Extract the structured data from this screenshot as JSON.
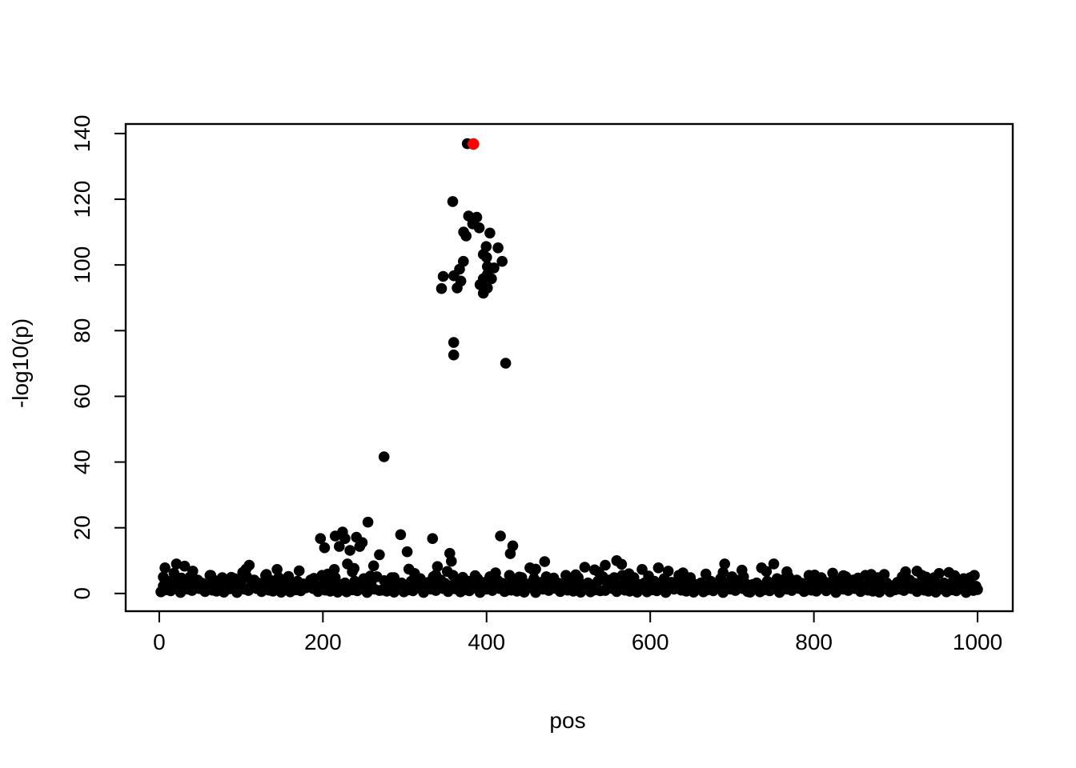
{
  "figure": {
    "background": "#FFFFFF"
  },
  "chart_data": {
    "type": "scatter",
    "title": "",
    "xlabel": "pos",
    "ylabel": "-log10(p)",
    "xlim": [
      -41,
      1043
    ],
    "ylim": [
      -5.4,
      142.9
    ],
    "x_ticks": [
      0,
      200,
      400,
      600,
      800,
      1000
    ],
    "y_ticks": [
      0,
      20,
      40,
      60,
      80,
      100,
      120,
      140
    ],
    "grid": false,
    "legend": false,
    "point_color": "#000000",
    "highlight_color": "#FF0000",
    "highlighted_point": {
      "x": 383.9,
      "y": 136.8
    },
    "series": [
      {
        "name": "baseline_points",
        "color": "#000000",
        "points_xy_flat": [
          2,
          0.5,
          5,
          2.3,
          8,
          1.1,
          10,
          3.7,
          14,
          0.8,
          17,
          2.9,
          19,
          1.7,
          23,
          4.5,
          26,
          0.3,
          29,
          2.0,
          32,
          3.4,
          35,
          1.3,
          38,
          5.1,
          40,
          0.9,
          44,
          2.6,
          47,
          4.1,
          49,
          1.5,
          53,
          3.1,
          56,
          0.6,
          59,
          2.4,
          62,
          5.5,
          65,
          1.0,
          68,
          3.9,
          70,
          0.7,
          74,
          1.9,
          77,
          4.8,
          79,
          0.4,
          83,
          2.7,
          86,
          1.4,
          89,
          3.2,
          92,
          4.5,
          95,
          0.3,
          98,
          2.0,
          100,
          3.4,
          104,
          1.3,
          107,
          5.1,
          109,
          0.9,
          113,
          2.6,
          116,
          4.1,
          119,
          1.5,
          122,
          3.1,
          125,
          0.6,
          128,
          2.4,
          130,
          5.5,
          134,
          1.0,
          137,
          3.9,
          139,
          0.7,
          143,
          1.9,
          146,
          4.8,
          149,
          0.4,
          152,
          2.7,
          155,
          1.4,
          158,
          3.2,
          160,
          0.5,
          164,
          2.3,
          167,
          1.1,
          169,
          3.7,
          173,
          0.8,
          176,
          2.9,
          179,
          1.7,
          182,
          2.6,
          185,
          4.1,
          188,
          1.5,
          190,
          3.1,
          194,
          0.6,
          197,
          2.4,
          199,
          5.5,
          203,
          1.0,
          206,
          3.9,
          209,
          0.7,
          212,
          1.9,
          215,
          4.8,
          218,
          0.4,
          220,
          2.7,
          224,
          1.4,
          227,
          3.2,
          229,
          0.5,
          233,
          2.3,
          236,
          1.1,
          239,
          3.7,
          242,
          0.8,
          245,
          2.9,
          248,
          1.7,
          250,
          4.5,
          254,
          0.3,
          257,
          2.0,
          259,
          3.4,
          263,
          1.3,
          266,
          5.1,
          269,
          0.9,
          272,
          1.0,
          275,
          3.9,
          278,
          0.7,
          280,
          1.9,
          284,
          4.8,
          287,
          0.4,
          289,
          2.7,
          293,
          1.4,
          296,
          3.2,
          299,
          0.5,
          302,
          2.3,
          305,
          1.1,
          308,
          3.7,
          310,
          0.8,
          314,
          2.9,
          317,
          1.7,
          319,
          4.5,
          323,
          0.3,
          326,
          2.0,
          329,
          3.4,
          332,
          1.3,
          335,
          5.1,
          338,
          0.9,
          340,
          2.6,
          344,
          4.1,
          347,
          1.5,
          349,
          3.1,
          353,
          0.6,
          356,
          2.4,
          359,
          5.5,
          362,
          1.4,
          365,
          3.2,
          368,
          0.5,
          370,
          2.3,
          374,
          1.1,
          377,
          3.7,
          379,
          0.8,
          383,
          2.9,
          386,
          1.7,
          389,
          4.5,
          392,
          0.3,
          395,
          2.0,
          398,
          3.4,
          400,
          1.3,
          404,
          5.1,
          407,
          0.9,
          409,
          2.6,
          413,
          4.1,
          416,
          1.5,
          419,
          3.1,
          422,
          0.6,
          425,
          2.4,
          428,
          5.5,
          430,
          1.0,
          434,
          3.9,
          437,
          0.7,
          439,
          1.9,
          443,
          4.8,
          446,
          0.4,
          449,
          2.7,
          452,
          2.9,
          455,
          1.7,
          458,
          4.5,
          460,
          0.3,
          464,
          2.0,
          467,
          3.4,
          469,
          1.3,
          473,
          5.1,
          476,
          0.9,
          479,
          2.6,
          482,
          4.1,
          485,
          1.5,
          488,
          3.1,
          490,
          0.6,
          494,
          2.4,
          497,
          5.5,
          499,
          1.0,
          503,
          3.9,
          506,
          0.7,
          509,
          1.9,
          512,
          4.8,
          515,
          0.4,
          518,
          2.7,
          520,
          1.4,
          524,
          3.2,
          527,
          0.5,
          529,
          2.3,
          533,
          1.1,
          536,
          3.7,
          539,
          0.8,
          542,
          5.1,
          545,
          0.9,
          548,
          2.6,
          550,
          4.1,
          554,
          1.5,
          557,
          3.1,
          559,
          0.6,
          563,
          2.4,
          566,
          5.5,
          569,
          1.0,
          572,
          3.9,
          575,
          0.7,
          578,
          1.9,
          580,
          4.8,
          584,
          0.4,
          587,
          2.7,
          589,
          1.4,
          593,
          3.2,
          596,
          0.5,
          599,
          2.3,
          602,
          1.1,
          605,
          3.7,
          608,
          0.8,
          610,
          2.9,
          614,
          1.7,
          617,
          4.5,
          619,
          0.3,
          623,
          2.0,
          626,
          3.4,
          629,
          1.3,
          632,
          2.4,
          635,
          5.5,
          638,
          1.0,
          640,
          3.9,
          644,
          0.7,
          647,
          1.9,
          649,
          4.8,
          653,
          0.4,
          656,
          2.7,
          659,
          1.4,
          662,
          3.2,
          665,
          0.5,
          668,
          2.3,
          670,
          1.1,
          674,
          3.7,
          677,
          0.8,
          679,
          2.9,
          683,
          1.7,
          686,
          4.5,
          689,
          0.3,
          692,
          2.0,
          695,
          3.4,
          698,
          1.3,
          700,
          5.1,
          704,
          0.9,
          707,
          2.6,
          709,
          4.1,
          713,
          1.5,
          716,
          3.1,
          719,
          0.6,
          722,
          0.4,
          725,
          2.7,
          728,
          1.4,
          730,
          3.2,
          734,
          0.5,
          737,
          2.3,
          739,
          1.1,
          743,
          3.7,
          746,
          0.8,
          749,
          2.9,
          752,
          1.7,
          755,
          4.5,
          758,
          0.3,
          760,
          2.0,
          764,
          3.4,
          767,
          1.3,
          769,
          5.1,
          773,
          0.9,
          776,
          2.6,
          779,
          4.1,
          782,
          1.5,
          785,
          3.1,
          788,
          0.6,
          790,
          2.4,
          794,
          5.5,
          797,
          1.0,
          799,
          3.9,
          803,
          0.7,
          806,
          1.9,
          809,
          4.8,
          812,
          3.7,
          815,
          0.8,
          818,
          2.9,
          820,
          1.7,
          824,
          4.5,
          827,
          0.3,
          829,
          2.0,
          833,
          3.4,
          836,
          1.3,
          839,
          5.1,
          842,
          0.9,
          845,
          2.6,
          848,
          4.1,
          850,
          1.5,
          854,
          3.1,
          857,
          0.6,
          859,
          2.4,
          863,
          5.5,
          866,
          1.0,
          869,
          3.9,
          872,
          0.7,
          875,
          1.9,
          878,
          4.8,
          880,
          0.4,
          884,
          2.7,
          887,
          1.4,
          889,
          3.2,
          893,
          0.5,
          896,
          2.3,
          899,
          1.1,
          902,
          3.4,
          905,
          1.3,
          908,
          5.1,
          910,
          0.9,
          914,
          2.6,
          917,
          4.1,
          919,
          1.5,
          923,
          3.1,
          926,
          0.6,
          929,
          2.4,
          932,
          5.5,
          935,
          1.0,
          938,
          3.9,
          940,
          0.7,
          944,
          1.9,
          947,
          4.8,
          949,
          0.4,
          953,
          2.7,
          956,
          1.4,
          959,
          3.2,
          962,
          0.5,
          965,
          2.3,
          968,
          1.1,
          970,
          3.7,
          974,
          0.8,
          977,
          2.9,
          979,
          1.7,
          983,
          4.5,
          986,
          0.3,
          989,
          2.0,
          992,
          1.8,
          995,
          0.9,
          998,
          2.2,
          1000,
          1.2
        ]
      },
      {
        "name": "moderate_points",
        "color": "#000000",
        "points_xy_flat": [
          5,
          5.0,
          18,
          6.2,
          27,
          4.7,
          41,
          6.8,
          63,
          5.5,
          88,
          4.9,
          102,
          6.4,
          131,
          5.8,
          158,
          5.2,
          171,
          6.9,
          189,
          4.6,
          206,
          5.9,
          236,
          6.6,
          258,
          5.3,
          287,
          4.8,
          312,
          6.1,
          338,
          5.6,
          352,
          6.7,
          371,
          4.9,
          386,
          5.4,
          411,
          6.3,
          440,
          5.0,
          458,
          6.9,
          482,
          4.7,
          509,
          5.7,
          537,
          6.5,
          556,
          4.8,
          574,
          6.0,
          598,
          5.3,
          622,
          6.8,
          647,
          4.6,
          668,
          5.9,
          689,
          6.4,
          714,
          5.1,
          742,
          6.7,
          766,
          4.9,
          801,
          5.6,
          823,
          6.2,
          854,
          4.7,
          886,
          5.8,
          912,
          6.6,
          937,
          5.0,
          953,
          6.1,
          972,
          5.4,
          991,
          4.8,
          7,
          7.8,
          21,
          9.0,
          31,
          8.3,
          105,
          6.6,
          106,
          7.4,
          110,
          8.6,
          144,
          7.3,
          214,
          7.3,
          230,
          9.0,
          238,
          7.6,
          262,
          8.4,
          305,
          7.4,
          340,
          8.2,
          471,
          9.7,
          520,
          8.0,
          532,
          7.2,
          545,
          8.6,
          559,
          10.0,
          565,
          8.9,
          590,
          7.3,
          610,
          7.8,
          640,
          6.3,
          691,
          9.0,
          712,
          7.1,
          736,
          7.8,
          751,
          9.0,
          767,
          6.6,
          808,
          4.6,
          836,
          5.4,
          870,
          5.8,
          926,
          6.8,
          965,
          6.4,
          996,
          5.5,
          197,
          16.7,
          202,
          13.9,
          215,
          17.5,
          224,
          18.7,
          227,
          16.7,
          220,
          14.3,
          233,
          13.1,
          241,
          17.1,
          248,
          15.5,
          245,
          14.3,
          255,
          21.7,
          269,
          11.8,
          295,
          17.9,
          303,
          12.7,
          334,
          16.7,
          355,
          12.2,
          357,
          9.8,
          417,
          17.5,
          432,
          14.5,
          429,
          12.1,
          453,
          7.8,
          460,
          7.4
        ]
      },
      {
        "name": "peak_points",
        "color": "#000000",
        "points_xy_flat": [
          358.7,
          119.3,
          378,
          114.9,
          388,
          114.5,
          383,
          112.5,
          391,
          111.3,
          372,
          110.0,
          404,
          109.7,
          375,
          108.8,
          399.5,
          105.6,
          414,
          105.2,
          396,
          103.2,
          419,
          101.1,
          400,
          102.3,
          371.7,
          101.1,
          401,
          99.5,
          409,
          99.1,
          367,
          98.7,
          401,
          97.1,
          396,
          95.8,
          406,
          95.8,
          360,
          96.7,
          368.5,
          95.1,
          347,
          96.5,
          345,
          92.8,
          364,
          93.0,
          401,
          93.0,
          396,
          91.4,
          392,
          94.0,
          274.7,
          41.6,
          359.8,
          76.4,
          359.8,
          72.6,
          423.3,
          70.1,
          376.5,
          136.9
        ]
      },
      {
        "name": "highlighted_point",
        "color": "#FF0000",
        "points_xy_flat": [
          383.9,
          136.8
        ]
      }
    ]
  }
}
